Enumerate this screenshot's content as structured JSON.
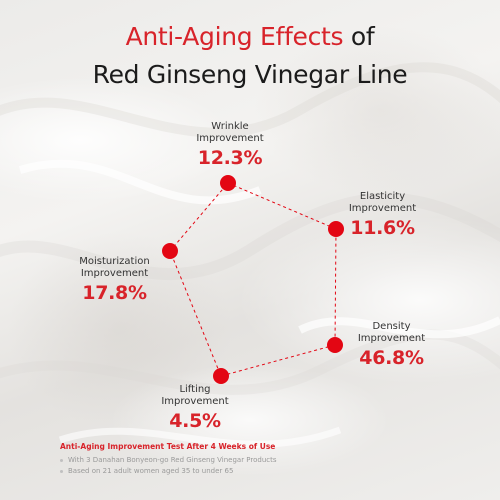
{
  "title": {
    "line1_accent": "Anti-Aging Effects",
    "line1_rest": " of",
    "line2": "Red Ginseng Vinegar Line"
  },
  "metrics": [
    {
      "label_line1": "Wrinkle",
      "label_line2": "Improvement",
      "value": "12.3%"
    },
    {
      "label_line1": "Elasticity",
      "label_line2": "Improvement",
      "value": "11.6%"
    },
    {
      "label_line1": "Moisturization",
      "label_line2": "Improvement",
      "value": "17.8%"
    },
    {
      "label_line1": "Density",
      "label_line2": "Improvement",
      "value": "46.8%"
    },
    {
      "label_line1": "Lifting",
      "label_line2": "Improvement",
      "value": "4.5%"
    }
  ],
  "footer": {
    "title": "Anti-Aging Improvement Test After 4 Weeks of Use",
    "items": [
      "With 3 Danahan Bonyeon-go Red Ginseng Vinegar Products",
      "Based on 21 adult women aged 35 to under 65"
    ]
  },
  "colors": {
    "accent": "#d8232a",
    "text": "#1b1b1b",
    "note": "#9a9a9a",
    "dot": "#e30613"
  }
}
